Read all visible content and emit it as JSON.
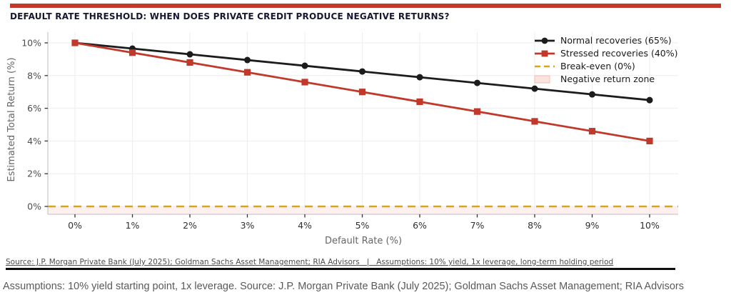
{
  "header": {
    "title": "DEFAULT RATE THRESHOLD: WHEN DOES PRIVATE CREDIT PRODUCE NEGATIVE RETURNS?",
    "accent_color": "#c0392b"
  },
  "chart_data": {
    "type": "line",
    "title": "DEFAULT RATE THRESHOLD: WHEN DOES PRIVATE CREDIT PRODUCE NEGATIVE RETURNS?",
    "x": [
      0,
      1,
      2,
      3,
      4,
      5,
      6,
      7,
      8,
      9,
      10
    ],
    "x_tick_labels": [
      "0%",
      "1%",
      "2%",
      "3%",
      "4%",
      "5%",
      "6%",
      "7%",
      "8%",
      "9%",
      "10%"
    ],
    "xlabel": "Default Rate (%)",
    "ylabel": "Estimated Total Return (%)",
    "y_ticks": [
      0,
      2,
      4,
      6,
      8,
      10
    ],
    "y_tick_labels": [
      "0%",
      "2%",
      "4%",
      "6%",
      "8%",
      "10%"
    ],
    "xlim": [
      -0.5,
      10.5
    ],
    "ylim": [
      -0.5,
      10.65
    ],
    "grid": true,
    "legend_position": "upper right",
    "series": [
      {
        "name": "Normal recoveries (65%)",
        "color": "#1c1c1c",
        "marker": "circle",
        "values": [
          10,
          9.65,
          9.3,
          8.95,
          8.6,
          8.25,
          7.9,
          7.55,
          7.2,
          6.85,
          6.5
        ]
      },
      {
        "name": "Stressed recoveries (40%)",
        "color": "#c0392b",
        "marker": "square",
        "values": [
          10,
          9.4,
          8.8,
          8.2,
          7.6,
          7.0,
          6.4,
          5.8,
          5.2,
          4.6,
          4.0
        ]
      }
    ],
    "breakeven": {
      "label": "Break-even (0%)",
      "value": 0,
      "color": "#d9a514",
      "style": "dashed"
    },
    "negative_zone": {
      "label": "Negative return zone",
      "fill": "#fbe3e0",
      "border": "#f0bcb5"
    }
  },
  "footer": {
    "source_line": "Source: J.P. Morgan Private Bank (July 2025); Goldman Sachs Asset Management; RIA Advisors   |   Assumptions: 10% yield, 1x leverage, long-term holding period",
    "caption": "Assumptions: 10% yield starting point, 1x leverage. Source: J.P. Morgan Private Bank (July 2025); Goldman Sachs Asset Management; RIA Advisors"
  }
}
